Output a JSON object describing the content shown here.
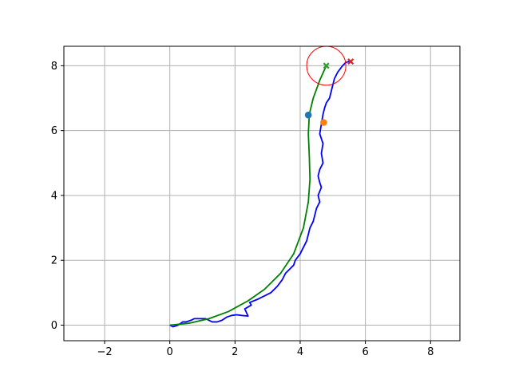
{
  "chart_data": {
    "type": "line",
    "title": "",
    "xlabel": "",
    "ylabel": "",
    "xlim": [
      -3.25,
      8.9
    ],
    "ylim": [
      -0.48,
      8.6
    ],
    "xticks": [
      -2,
      0,
      2,
      4,
      6,
      8
    ],
    "yticks": [
      0,
      2,
      4,
      6,
      8
    ],
    "xtick_labels": [
      "−2",
      "0",
      "2",
      "4",
      "6",
      "8"
    ],
    "ytick_labels": [
      "0",
      "2",
      "4",
      "6",
      "8"
    ],
    "grid": true,
    "series": [
      {
        "color": "#0000ff",
        "x": [
          0.0,
          0.1,
          0.25,
          0.4,
          0.5,
          0.65,
          0.75,
          0.9,
          1.1,
          1.3,
          1.45,
          1.6,
          1.75,
          1.9,
          2.05,
          2.2,
          2.4,
          2.3,
          2.5,
          2.45,
          2.7,
          2.9,
          3.1,
          3.3,
          3.45,
          3.55,
          3.7,
          3.8,
          3.85,
          4.0,
          4.1,
          4.2,
          4.25,
          4.3,
          4.4,
          4.45,
          4.5,
          4.6,
          4.55,
          4.65,
          4.6,
          4.55,
          4.6,
          4.7,
          4.65,
          4.7,
          4.6,
          4.65,
          4.7,
          4.75,
          4.8,
          4.9,
          4.95,
          5.0,
          5.05,
          5.15,
          5.3,
          5.4,
          5.55
        ],
        "y": [
          0.0,
          -0.05,
          0.0,
          0.1,
          0.1,
          0.15,
          0.2,
          0.2,
          0.2,
          0.1,
          0.1,
          0.15,
          0.25,
          0.3,
          0.32,
          0.3,
          0.28,
          0.5,
          0.62,
          0.7,
          0.8,
          0.9,
          1.0,
          1.2,
          1.4,
          1.6,
          1.75,
          1.85,
          2.0,
          2.2,
          2.4,
          2.6,
          2.8,
          3.0,
          3.2,
          3.4,
          3.6,
          3.8,
          4.0,
          4.25,
          4.4,
          4.6,
          4.8,
          5.0,
          5.3,
          5.6,
          5.9,
          6.2,
          6.5,
          6.7,
          6.85,
          7.0,
          7.2,
          7.4,
          7.6,
          7.8,
          8.0,
          8.1,
          8.15
        ]
      },
      {
        "color": "#008000",
        "x": [
          0.0,
          0.6,
          1.2,
          1.8,
          2.4,
          2.9,
          3.4,
          3.8,
          4.1,
          4.25,
          4.3,
          4.28,
          4.25,
          4.28,
          4.4,
          4.6,
          4.8
        ],
        "y": [
          0.0,
          0.06,
          0.2,
          0.42,
          0.75,
          1.1,
          1.6,
          2.2,
          3.0,
          3.8,
          4.5,
          5.2,
          5.9,
          6.5,
          7.0,
          7.55,
          8.0
        ]
      }
    ],
    "markers": [
      {
        "type": "circle",
        "color": "#1f77b4",
        "x": 4.25,
        "y": 6.48
      },
      {
        "type": "circle",
        "color": "#ff7f0e",
        "x": 4.72,
        "y": 6.25
      },
      {
        "type": "x",
        "color": "#2ca02c",
        "x": 4.8,
        "y": 8.0
      },
      {
        "type": "x",
        "color": "#d62728",
        "x": 5.55,
        "y": 8.13
      }
    ],
    "circle": {
      "color": "#ff0000",
      "cx": 4.8,
      "cy": 8.0,
      "r": 0.6
    }
  }
}
